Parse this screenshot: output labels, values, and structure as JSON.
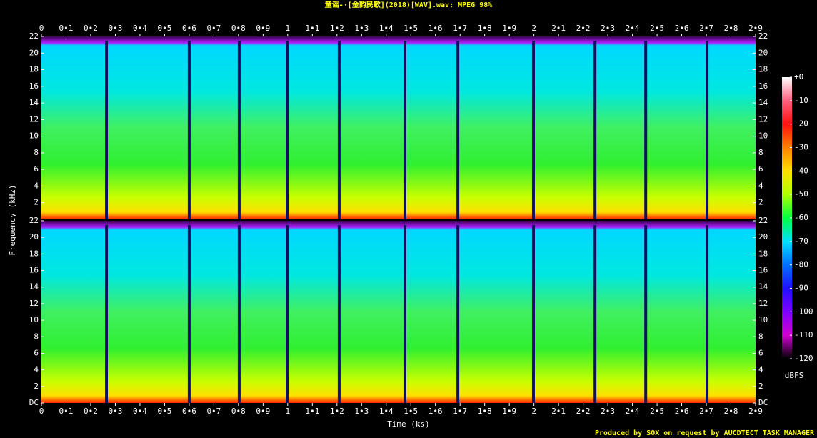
{
  "chart_data": {
    "type": "spectrogram",
    "title": "童谣-·[金韵民歌](2018)[WAV].wav: MPEG 98%",
    "xlabel": "Time (ks)",
    "ylabel": "Frequency (kHz)",
    "footer": "Produced by SOX on request by AUCDTECT TASK MANAGER",
    "xlim": [
      0,
      2.9
    ],
    "xticks": [
      0,
      {
        "value": 0.1,
        "label": "0•1"
      },
      {
        "value": 0.2,
        "label": "0•2"
      },
      {
        "value": 0.3,
        "label": "0•3"
      },
      {
        "value": 0.4,
        "label": "0•4"
      },
      {
        "value": 0.5,
        "label": "0•5"
      },
      {
        "value": 0.6,
        "label": "0•6"
      },
      {
        "value": 0.7,
        "label": "0•7"
      },
      {
        "value": 0.8,
        "label": "0•8"
      },
      {
        "value": 0.9,
        "label": "0•9"
      },
      1,
      {
        "value": 1.1,
        "label": "1•1"
      },
      {
        "value": 1.2,
        "label": "1•2"
      },
      {
        "value": 1.3,
        "label": "1•3"
      },
      {
        "value": 1.4,
        "label": "1•4"
      },
      {
        "value": 1.5,
        "label": "1•5"
      },
      {
        "value": 1.6,
        "label": "1•6"
      },
      {
        "value": 1.7,
        "label": "1•7"
      },
      {
        "value": 1.8,
        "label": "1•8"
      },
      {
        "value": 1.9,
        "label": "1•9"
      },
      2,
      {
        "value": 2.1,
        "label": "2•1"
      },
      {
        "value": 2.2,
        "label": "2•2"
      },
      {
        "value": 2.3,
        "label": "2•3"
      },
      {
        "value": 2.4,
        "label": "2•4"
      },
      {
        "value": 2.5,
        "label": "2•5"
      },
      {
        "value": 2.6,
        "label": "2•6"
      },
      {
        "value": 2.7,
        "label": "2•7"
      },
      {
        "value": 2.8,
        "label": "2•8"
      },
      {
        "value": 2.9,
        "label": "2•9"
      }
    ],
    "channels": [
      {
        "ylim": [
          0,
          22
        ],
        "yticks": [
          2,
          4,
          6,
          8,
          10,
          12,
          14,
          16,
          18,
          20,
          22
        ]
      },
      {
        "ylim": [
          0,
          22
        ],
        "yticks": [
          {
            "value": 0,
            "label": "DC"
          },
          2,
          4,
          6,
          8,
          10,
          12,
          14,
          16,
          18,
          20,
          22
        ]
      }
    ],
    "track_boundaries": [
      0.264,
      0.6,
      0.803,
      0.998,
      1.209,
      1.476,
      1.691,
      1.998,
      2.248,
      2.454,
      2.703
    ],
    "colorbar": {
      "label": "dBFS",
      "lim": [
        -120,
        0
      ],
      "ticks": [
        {
          "value": 0,
          "label": "+0"
        },
        -10,
        -20,
        -30,
        -40,
        -50,
        -60,
        -70,
        -80,
        -90,
        -100,
        -110,
        -120
      ],
      "colors": [
        "#ffffff",
        "#ff6080",
        "#ff1010",
        "#ff8000",
        "#ffe000",
        "#b0ff00",
        "#00ff40",
        "#00e0ff",
        "#0070ff",
        "#2010ff",
        "#8000ff",
        "#d000d0",
        "#000000"
      ]
    }
  }
}
